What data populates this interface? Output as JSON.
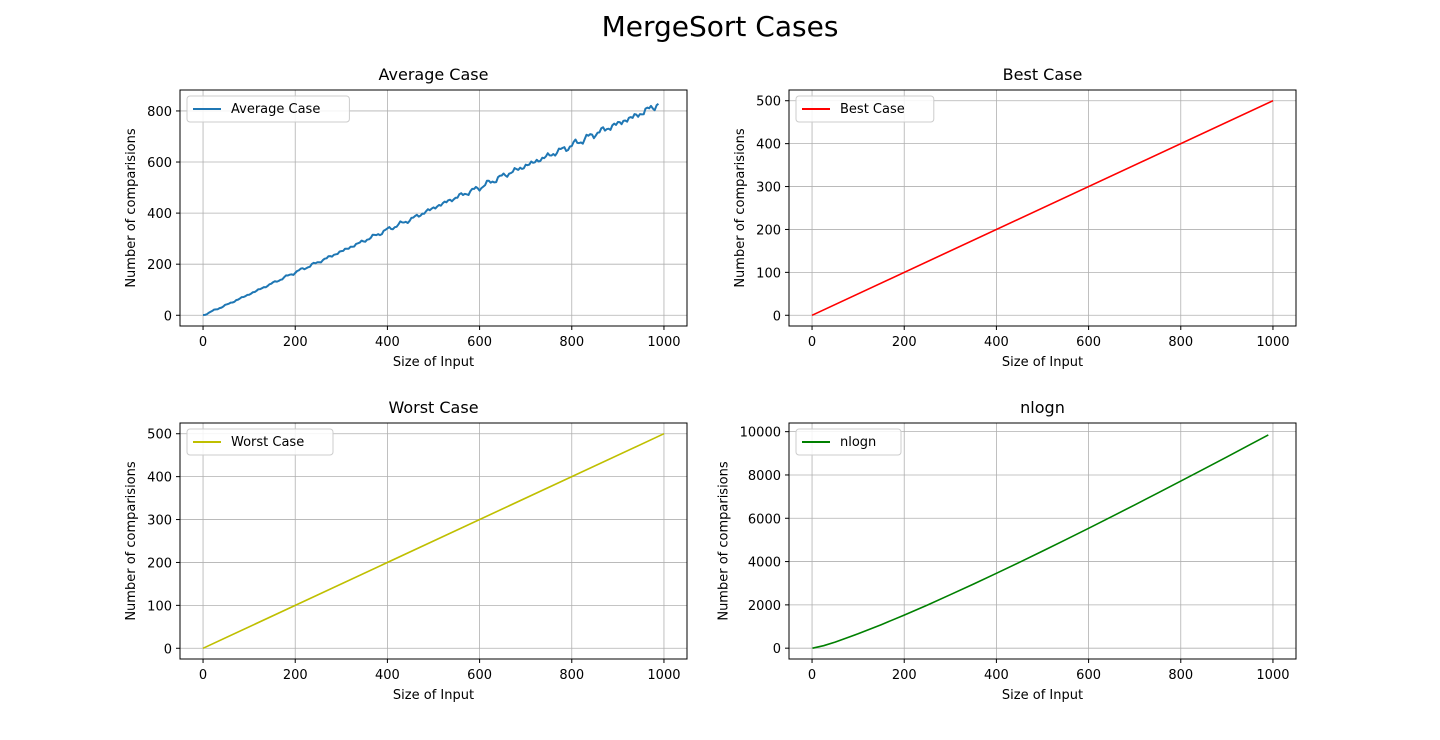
{
  "figure": {
    "title": "MergeSort Cases"
  },
  "chart_data": [
    {
      "type": "line",
      "title": "Average Case",
      "xlabel": "Size of Input",
      "ylabel": "Number of comparisions",
      "xlim": [
        -50,
        1050
      ],
      "ylim": [
        -42,
        882
      ],
      "xticks": [
        0,
        200,
        400,
        600,
        800,
        1000
      ],
      "yticks": [
        0,
        200,
        400,
        600,
        800
      ],
      "grid": true,
      "legend": "upper-left",
      "series": [
        {
          "name": "Average Case",
          "color": "#1f77b4",
          "x": [
            0,
            50,
            100,
            150,
            200,
            250,
            300,
            350,
            400,
            450,
            500,
            550,
            600,
            650,
            700,
            750,
            800,
            850,
            900,
            950,
            990
          ],
          "values": [
            0,
            40,
            82,
            125,
            168,
            208,
            250,
            292,
            335,
            375,
            420,
            462,
            500,
            545,
            585,
            625,
            665,
            710,
            750,
            790,
            830
          ]
        }
      ]
    },
    {
      "type": "line",
      "title": "Best Case",
      "xlabel": "Size of Input",
      "ylabel": "Number of comparisions",
      "xlim": [
        -50,
        1050
      ],
      "ylim": [
        -25,
        525
      ],
      "xticks": [
        0,
        200,
        400,
        600,
        800,
        1000
      ],
      "yticks": [
        0,
        100,
        200,
        300,
        400,
        500
      ],
      "grid": true,
      "legend": "upper-left",
      "series": [
        {
          "name": "Best Case",
          "color": "#ff0000",
          "x": [
            0,
            1000
          ],
          "values": [
            0,
            500
          ]
        }
      ]
    },
    {
      "type": "line",
      "title": "Worst Case",
      "xlabel": "Size of Input",
      "ylabel": "Number of comparisions",
      "xlim": [
        -50,
        1050
      ],
      "ylim": [
        -25,
        525
      ],
      "xticks": [
        0,
        200,
        400,
        600,
        800,
        1000
      ],
      "yticks": [
        0,
        100,
        200,
        300,
        400,
        500
      ],
      "grid": true,
      "legend": "upper-left",
      "series": [
        {
          "name": "Worst Case",
          "color": "#bfbf00",
          "x": [
            0,
            1000
          ],
          "values": [
            0,
            500
          ]
        }
      ]
    },
    {
      "type": "line",
      "title": "nlogn",
      "xlabel": "Size of Input",
      "ylabel": "Number of comparisions",
      "xlim": [
        -50,
        1050
      ],
      "ylim": [
        -500,
        10400
      ],
      "xticks": [
        0,
        200,
        400,
        600,
        800,
        1000
      ],
      "yticks": [
        0,
        2000,
        4000,
        6000,
        8000,
        10000
      ],
      "grid": true,
      "legend": "upper-left",
      "series": [
        {
          "name": "nlogn",
          "color": "#008000",
          "x": [
            1,
            25,
            50,
            100,
            150,
            200,
            250,
            300,
            350,
            400,
            450,
            500,
            550,
            600,
            650,
            700,
            750,
            800,
            850,
            900,
            950,
            990
          ],
          "values": [
            0,
            116,
            282,
            664,
            1084,
            1529,
            1991,
            2469,
            2958,
            3458,
            3966,
            4483,
            5007,
            5537,
            6074,
            6616,
            7163,
            7715,
            8271,
            8832,
            9397,
            9852
          ]
        }
      ]
    }
  ]
}
